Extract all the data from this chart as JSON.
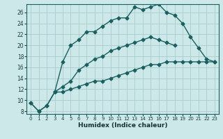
{
  "xlabel": "Humidex (Indice chaleur)",
  "bg_color": "#cce8e8",
  "grid_color": "#aacccc",
  "line_color": "#1a6060",
  "xlim": [
    -0.5,
    23.5
  ],
  "ylim": [
    7.5,
    27.5
  ],
  "xticks": [
    0,
    1,
    2,
    3,
    4,
    5,
    6,
    7,
    8,
    9,
    10,
    11,
    12,
    13,
    14,
    15,
    16,
    17,
    18,
    19,
    20,
    21,
    22,
    23
  ],
  "yticks": [
    8,
    10,
    12,
    14,
    16,
    18,
    20,
    22,
    24,
    26
  ],
  "series": [
    {
      "x": [
        0,
        1,
        2,
        3,
        4,
        5,
        6,
        7,
        8,
        9,
        10,
        11,
        12,
        13,
        14,
        15,
        16,
        17,
        18,
        19,
        20,
        21,
        22,
        23
      ],
      "y": [
        9.5,
        8.0,
        9.0,
        11.5,
        17.0,
        20.0,
        21.0,
        22.5,
        22.5,
        23.5,
        24.5,
        25.0,
        25.0,
        27.0,
        26.5,
        27.0,
        27.5,
        26.0,
        25.5,
        24.0,
        21.5,
        19.5,
        17.5,
        17.0
      ],
      "marker": "D",
      "markersize": 2.5,
      "linewidth": 1.0
    },
    {
      "x": [
        0,
        1,
        2,
        3,
        4,
        5,
        6,
        7,
        8,
        9,
        10,
        11,
        12,
        13,
        14,
        15,
        16,
        17,
        18,
        19,
        20,
        21,
        22,
        23
      ],
      "y": [
        9.5,
        8.0,
        9.0,
        11.5,
        12.5,
        13.5,
        15.5,
        16.5,
        17.5,
        18.0,
        19.0,
        19.5,
        20.0,
        20.5,
        21.0,
        21.5,
        21.0,
        20.5,
        20.0,
        null,
        null,
        null,
        null,
        null
      ],
      "marker": "D",
      "markersize": 2.5,
      "linewidth": 1.0
    },
    {
      "x": [
        3,
        4,
        5,
        6,
        7,
        8,
        9,
        10,
        11,
        12,
        13,
        14,
        15,
        16,
        17,
        18,
        19,
        20,
        21,
        22,
        23
      ],
      "y": [
        11.5,
        11.5,
        12.0,
        12.5,
        13.0,
        13.5,
        13.5,
        14.0,
        14.5,
        15.0,
        15.5,
        16.0,
        16.5,
        16.5,
        17.0,
        17.0,
        17.0,
        17.0,
        17.0,
        17.0,
        17.0
      ],
      "marker": "D",
      "markersize": 2.5,
      "linewidth": 1.0
    }
  ]
}
